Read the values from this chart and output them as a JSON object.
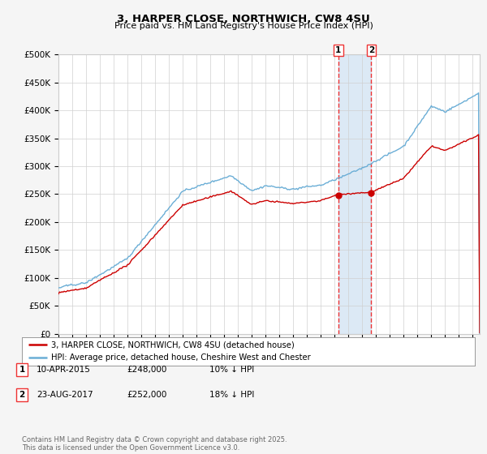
{
  "title": "3, HARPER CLOSE, NORTHWICH, CW8 4SU",
  "subtitle": "Price paid vs. HM Land Registry's House Price Index (HPI)",
  "ylabel_ticks": [
    "£0",
    "£50K",
    "£100K",
    "£150K",
    "£200K",
    "£250K",
    "£300K",
    "£350K",
    "£400K",
    "£450K",
    "£500K"
  ],
  "ytick_values": [
    0,
    50000,
    100000,
    150000,
    200000,
    250000,
    300000,
    350000,
    400000,
    450000,
    500000
  ],
  "xlim_start": 1995.0,
  "xlim_end": 2025.5,
  "ylim": [
    0,
    500000
  ],
  "transaction1": {
    "date_num": 2015.27,
    "price": 248000,
    "label": "1"
  },
  "transaction2": {
    "date_num": 2017.64,
    "price": 252000,
    "label": "2"
  },
  "annotation1": {
    "date": "10-APR-2015",
    "price": "£248,000",
    "pct": "10% ↓ HPI"
  },
  "annotation2": {
    "date": "23-AUG-2017",
    "price": "£252,000",
    "pct": "18% ↓ HPI"
  },
  "legend_red": "3, HARPER CLOSE, NORTHWICH, CW8 4SU (detached house)",
  "legend_blue": "HPI: Average price, detached house, Cheshire West and Chester",
  "footer": "Contains HM Land Registry data © Crown copyright and database right 2025.\nThis data is licensed under the Open Government Licence v3.0.",
  "red_color": "#cc0000",
  "blue_color": "#6baed6",
  "shade_color": "#c6dbef",
  "vline_color": "#ee3333",
  "background": "#f5f5f5",
  "plot_background": "#ffffff"
}
